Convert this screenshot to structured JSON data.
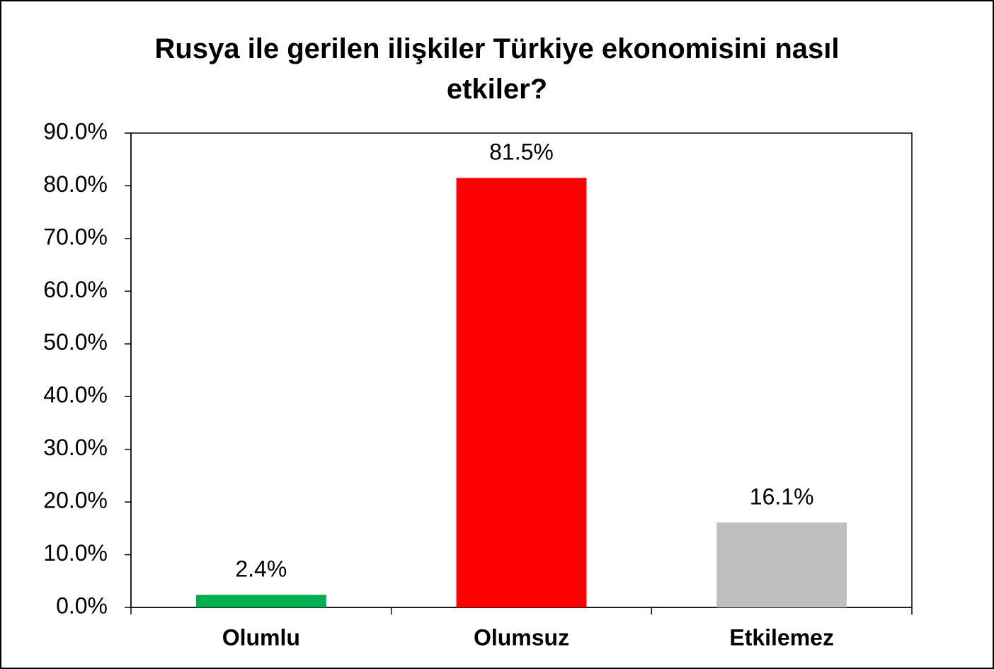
{
  "chart_data": {
    "type": "bar",
    "title": "Rusya ile gerilen ilişkiler Türkiye ekonomisini nasıl etkiler?",
    "categories": [
      "Olumlu",
      "Olumsuz",
      "Etkilemez"
    ],
    "values": [
      2.4,
      81.5,
      16.1
    ],
    "value_labels": [
      "2.4%",
      "81.5%",
      "16.1%"
    ],
    "colors": [
      "#00b050",
      "#ff0000",
      "#bfbfbf"
    ],
    "ylim": [
      0,
      90
    ],
    "yticks": [
      {
        "value": 0,
        "label": "0.0%"
      },
      {
        "value": 10,
        "label": "10.0%"
      },
      {
        "value": 20,
        "label": "20.0%"
      },
      {
        "value": 30,
        "label": "30.0%"
      },
      {
        "value": 40,
        "label": "40.0%"
      },
      {
        "value": 50,
        "label": "50.0%"
      },
      {
        "value": 60,
        "label": "60.0%"
      },
      {
        "value": 70,
        "label": "70.0%"
      },
      {
        "value": 80,
        "label": "80.0%"
      },
      {
        "value": 90,
        "label": "90.0%"
      }
    ],
    "grid": false
  }
}
